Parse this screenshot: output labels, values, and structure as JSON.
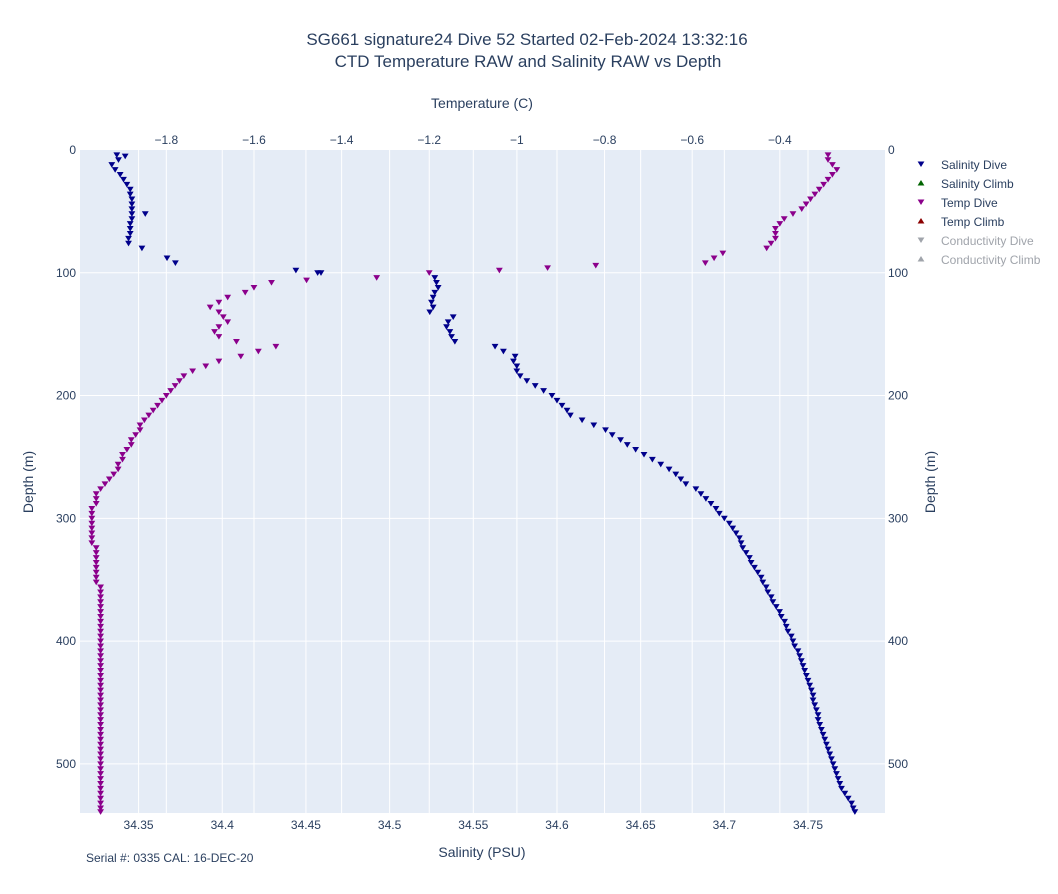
{
  "chart_data": {
    "type": "scatter",
    "title_line1": "SG661 signature24 Dive 52 Started 02-Feb-2024 13:32:16",
    "title_line2": "CTD Temperature RAW and Salinity RAW vs Depth",
    "xlabel_bottom": "Salinity (PSU)",
    "xlabel_top": "Temperature (C)",
    "ylabel_left": "Depth (m)",
    "ylabel_right": "Depth (m)",
    "salinity_range": [
      34.315,
      34.796
    ],
    "temperature_range": [
      -1.997,
      -0.16
    ],
    "depth_range": [
      0,
      540
    ],
    "y_reversed": true,
    "grid": true,
    "legend_placement": "top-right",
    "salinity_ticks": [
      "34.35",
      "34.4",
      "34.45",
      "34.5",
      "34.55",
      "34.6",
      "34.65",
      "34.7",
      "34.75"
    ],
    "temperature_ticks": [
      "−1.8",
      "−1.6",
      "−1.4",
      "−1.2",
      "−1",
      "−0.8",
      "−0.6",
      "−0.4"
    ],
    "depth_ticks": [
      "0",
      "100",
      "200",
      "300",
      "400",
      "500"
    ],
    "series": [
      {
        "name": "Salinity Dive",
        "axis": "salinity",
        "marker": "triangle-down",
        "color": "#00008b",
        "points": [
          [
            34.337,
            4
          ],
          [
            34.342,
            5
          ],
          [
            34.338,
            8
          ],
          [
            34.334,
            12
          ],
          [
            34.336,
            16
          ],
          [
            34.339,
            20
          ],
          [
            34.341,
            24
          ],
          [
            34.343,
            28
          ],
          [
            34.345,
            32
          ],
          [
            34.345,
            36
          ],
          [
            34.346,
            40
          ],
          [
            34.346,
            44
          ],
          [
            34.346,
            48
          ],
          [
            34.346,
            52
          ],
          [
            34.354,
            52
          ],
          [
            34.346,
            56
          ],
          [
            34.345,
            60
          ],
          [
            34.345,
            64
          ],
          [
            34.345,
            68
          ],
          [
            34.344,
            72
          ],
          [
            34.344,
            76
          ],
          [
            34.352,
            80
          ],
          [
            34.367,
            88
          ],
          [
            34.372,
            92
          ],
          [
            34.444,
            98
          ],
          [
            34.457,
            100
          ],
          [
            34.459,
            100
          ],
          [
            34.527,
            104
          ],
          [
            34.528,
            108
          ],
          [
            34.529,
            112
          ],
          [
            34.527,
            116
          ],
          [
            34.526,
            120
          ],
          [
            34.525,
            124
          ],
          [
            34.526,
            128
          ],
          [
            34.524,
            132
          ],
          [
            34.538,
            136
          ],
          [
            34.535,
            140
          ],
          [
            34.534,
            144
          ],
          [
            34.536,
            148
          ],
          [
            34.537,
            152
          ],
          [
            34.539,
            156
          ],
          [
            34.563,
            160
          ],
          [
            34.568,
            164
          ],
          [
            34.575,
            168
          ],
          [
            34.574,
            172
          ],
          [
            34.576,
            176
          ],
          [
            34.576,
            180
          ],
          [
            34.578,
            184
          ],
          [
            34.582,
            188
          ],
          [
            34.587,
            192
          ],
          [
            34.592,
            196
          ],
          [
            34.597,
            200
          ],
          [
            34.6,
            204
          ],
          [
            34.603,
            208
          ],
          [
            34.606,
            212
          ],
          [
            34.608,
            216
          ],
          [
            34.615,
            220
          ],
          [
            34.622,
            224
          ],
          [
            34.629,
            228
          ],
          [
            34.633,
            232
          ],
          [
            34.638,
            236
          ],
          [
            34.642,
            240
          ],
          [
            34.647,
            244
          ],
          [
            34.652,
            248
          ],
          [
            34.657,
            252
          ],
          [
            34.662,
            256
          ],
          [
            34.667,
            260
          ],
          [
            34.671,
            264
          ],
          [
            34.674,
            268
          ],
          [
            34.677,
            272
          ],
          [
            34.683,
            276
          ],
          [
            34.686,
            280
          ],
          [
            34.689,
            284
          ],
          [
            34.692,
            288
          ],
          [
            34.695,
            292
          ],
          [
            34.697,
            296
          ],
          [
            34.7,
            300
          ],
          [
            34.703,
            304
          ],
          [
            34.705,
            308
          ],
          [
            34.707,
            312
          ],
          [
            34.709,
            316
          ],
          [
            34.71,
            320
          ],
          [
            34.711,
            324
          ],
          [
            34.713,
            328
          ],
          [
            34.715,
            332
          ],
          [
            34.716,
            336
          ],
          [
            34.718,
            340
          ],
          [
            34.72,
            344
          ],
          [
            34.722,
            348
          ],
          [
            34.723,
            352
          ],
          [
            34.725,
            356
          ],
          [
            34.726,
            360
          ],
          [
            34.728,
            364
          ],
          [
            34.729,
            368
          ],
          [
            34.731,
            372
          ],
          [
            34.733,
            376
          ],
          [
            34.734,
            380
          ],
          [
            34.736,
            384
          ],
          [
            34.737,
            388
          ],
          [
            34.738,
            392
          ],
          [
            34.74,
            396
          ],
          [
            34.741,
            400
          ],
          [
            34.742,
            404
          ],
          [
            34.744,
            408
          ],
          [
            34.745,
            412
          ],
          [
            34.746,
            416
          ],
          [
            34.747,
            420
          ],
          [
            34.748,
            424
          ],
          [
            34.749,
            428
          ],
          [
            34.75,
            432
          ],
          [
            34.751,
            436
          ],
          [
            34.752,
            440
          ],
          [
            34.753,
            444
          ],
          [
            34.753,
            448
          ],
          [
            34.754,
            452
          ],
          [
            34.755,
            456
          ],
          [
            34.756,
            460
          ],
          [
            34.756,
            464
          ],
          [
            34.757,
            468
          ],
          [
            34.758,
            472
          ],
          [
            34.759,
            476
          ],
          [
            34.76,
            480
          ],
          [
            34.761,
            484
          ],
          [
            34.762,
            488
          ],
          [
            34.763,
            492
          ],
          [
            34.764,
            496
          ],
          [
            34.765,
            500
          ],
          [
            34.766,
            504
          ],
          [
            34.767,
            508
          ],
          [
            34.768,
            512
          ],
          [
            34.769,
            516
          ],
          [
            34.77,
            520
          ],
          [
            34.772,
            524
          ],
          [
            34.774,
            528
          ],
          [
            34.776,
            532
          ],
          [
            34.777,
            536
          ],
          [
            34.778,
            539
          ]
        ]
      },
      {
        "name": "Salinity Climb",
        "axis": "salinity",
        "marker": "triangle-up",
        "color": "#006400",
        "points": []
      },
      {
        "name": "Temp Dive",
        "axis": "temperature",
        "marker": "triangle-down",
        "color": "#8b008b",
        "points": [
          [
            -0.29,
            4
          ],
          [
            -0.29,
            8
          ],
          [
            -0.28,
            12
          ],
          [
            -0.27,
            16
          ],
          [
            -0.28,
            20
          ],
          [
            -0.29,
            24
          ],
          [
            -0.3,
            28
          ],
          [
            -0.31,
            32
          ],
          [
            -0.32,
            36
          ],
          [
            -0.33,
            40
          ],
          [
            -0.34,
            44
          ],
          [
            -0.35,
            48
          ],
          [
            -0.37,
            52
          ],
          [
            -0.39,
            56
          ],
          [
            -0.4,
            60
          ],
          [
            -0.41,
            64
          ],
          [
            -0.41,
            68
          ],
          [
            -0.41,
            72
          ],
          [
            -0.42,
            76
          ],
          [
            -0.43,
            80
          ],
          [
            -0.53,
            84
          ],
          [
            -0.55,
            88
          ],
          [
            -0.57,
            92
          ],
          [
            -0.82,
            94
          ],
          [
            -0.93,
            96
          ],
          [
            -1.04,
            98
          ],
          [
            -1.2,
            100
          ],
          [
            -1.32,
            104
          ],
          [
            -1.48,
            106
          ],
          [
            -1.56,
            108
          ],
          [
            -1.6,
            112
          ],
          [
            -1.62,
            116
          ],
          [
            -1.66,
            120
          ],
          [
            -1.68,
            124
          ],
          [
            -1.7,
            128
          ],
          [
            -1.68,
            132
          ],
          [
            -1.67,
            136
          ],
          [
            -1.66,
            140
          ],
          [
            -1.68,
            144
          ],
          [
            -1.69,
            148
          ],
          [
            -1.68,
            152
          ],
          [
            -1.64,
            156
          ],
          [
            -1.55,
            160
          ],
          [
            -1.59,
            164
          ],
          [
            -1.63,
            168
          ],
          [
            -1.68,
            172
          ],
          [
            -1.71,
            176
          ],
          [
            -1.74,
            180
          ],
          [
            -1.76,
            184
          ],
          [
            -1.77,
            188
          ],
          [
            -1.78,
            192
          ],
          [
            -1.79,
            196
          ],
          [
            -1.8,
            200
          ],
          [
            -1.81,
            204
          ],
          [
            -1.82,
            208
          ],
          [
            -1.83,
            212
          ],
          [
            -1.84,
            216
          ],
          [
            -1.85,
            220
          ],
          [
            -1.86,
            224
          ],
          [
            -1.86,
            228
          ],
          [
            -1.87,
            232
          ],
          [
            -1.88,
            236
          ],
          [
            -1.88,
            240
          ],
          [
            -1.89,
            244
          ],
          [
            -1.9,
            248
          ],
          [
            -1.9,
            252
          ],
          [
            -1.91,
            256
          ],
          [
            -1.91,
            260
          ],
          [
            -1.92,
            264
          ],
          [
            -1.93,
            268
          ],
          [
            -1.94,
            272
          ],
          [
            -1.95,
            276
          ],
          [
            -1.96,
            280
          ],
          [
            -1.96,
            284
          ],
          [
            -1.96,
            288
          ],
          [
            -1.97,
            292
          ],
          [
            -1.97,
            296
          ],
          [
            -1.97,
            300
          ],
          [
            -1.97,
            304
          ],
          [
            -1.97,
            308
          ],
          [
            -1.97,
            312
          ],
          [
            -1.97,
            316
          ],
          [
            -1.97,
            320
          ],
          [
            -1.96,
            324
          ],
          [
            -1.96,
            328
          ],
          [
            -1.96,
            332
          ],
          [
            -1.96,
            336
          ],
          [
            -1.96,
            340
          ],
          [
            -1.96,
            344
          ],
          [
            -1.96,
            348
          ],
          [
            -1.96,
            352
          ],
          [
            -1.95,
            356
          ],
          [
            -1.95,
            360
          ],
          [
            -1.95,
            364
          ],
          [
            -1.95,
            368
          ],
          [
            -1.95,
            372
          ],
          [
            -1.95,
            376
          ],
          [
            -1.95,
            380
          ],
          [
            -1.95,
            384
          ],
          [
            -1.95,
            388
          ],
          [
            -1.95,
            392
          ],
          [
            -1.95,
            396
          ],
          [
            -1.95,
            400
          ],
          [
            -1.95,
            404
          ],
          [
            -1.95,
            408
          ],
          [
            -1.95,
            412
          ],
          [
            -1.95,
            416
          ],
          [
            -1.95,
            420
          ],
          [
            -1.95,
            424
          ],
          [
            -1.95,
            428
          ],
          [
            -1.95,
            432
          ],
          [
            -1.95,
            436
          ],
          [
            -1.95,
            440
          ],
          [
            -1.95,
            444
          ],
          [
            -1.95,
            448
          ],
          [
            -1.95,
            452
          ],
          [
            -1.95,
            456
          ],
          [
            -1.95,
            460
          ],
          [
            -1.95,
            464
          ],
          [
            -1.95,
            468
          ],
          [
            -1.95,
            472
          ],
          [
            -1.95,
            476
          ],
          [
            -1.95,
            480
          ],
          [
            -1.95,
            484
          ],
          [
            -1.95,
            488
          ],
          [
            -1.95,
            492
          ],
          [
            -1.95,
            496
          ],
          [
            -1.95,
            500
          ],
          [
            -1.95,
            504
          ],
          [
            -1.95,
            508
          ],
          [
            -1.95,
            512
          ],
          [
            -1.95,
            516
          ],
          [
            -1.95,
            520
          ],
          [
            -1.95,
            524
          ],
          [
            -1.95,
            528
          ],
          [
            -1.95,
            532
          ],
          [
            -1.95,
            536
          ],
          [
            -1.95,
            539
          ]
        ]
      },
      {
        "name": "Temp Climb",
        "axis": "temperature",
        "marker": "triangle-up",
        "color": "#8b0000",
        "points": []
      },
      {
        "name": "Conductivity Dive",
        "marker": "triangle-down",
        "color": "#a0a4ab",
        "hidden": true,
        "points": []
      },
      {
        "name": "Conductivity Climb",
        "marker": "triangle-up",
        "color": "#a0a4ab",
        "hidden": true,
        "points": []
      }
    ],
    "footnote": "Serial #: 0335  CAL: 16-DEC-20"
  }
}
